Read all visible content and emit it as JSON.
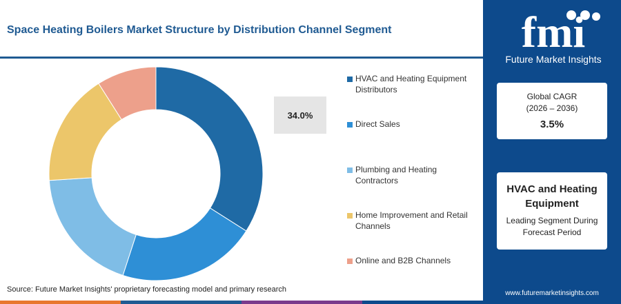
{
  "title": "Space Heating Boilers Market Structure by Distribution Channel Segment",
  "callout": "34.0%",
  "source": "Source: Future Market Insights' proprietary forecasting model and primary research",
  "bottom_bar_colors": [
    "#e8772e",
    "#1f5a92",
    "#7a3a8c",
    "#0d4a8c"
  ],
  "chart_data": {
    "type": "pie",
    "donut": true,
    "categories": [
      "HVAC and Heating Equipment Distributors",
      "Direct Sales",
      "Plumbing and Heating Contractors",
      "Home Improvement and Retail Channels",
      "Online and B2B Channels"
    ],
    "values": [
      34.0,
      21.0,
      19.0,
      17.0,
      9.0
    ],
    "colors": [
      "#1f6aa5",
      "#2e8fd6",
      "#7fbde6",
      "#ecc66a",
      "#eda08b"
    ],
    "legend_position": "right"
  },
  "logo": {
    "mark": "fmi",
    "text": "Future Market Insights"
  },
  "cagr_card": {
    "label": "Global CAGR",
    "period": "(2026 – 2036)",
    "value": "3.5%"
  },
  "segment_card": {
    "title": "HVAC and Heating Equipment",
    "subtitle": "Leading Segment During Forecast Period"
  },
  "website": "www.futuremarketinsights.com"
}
